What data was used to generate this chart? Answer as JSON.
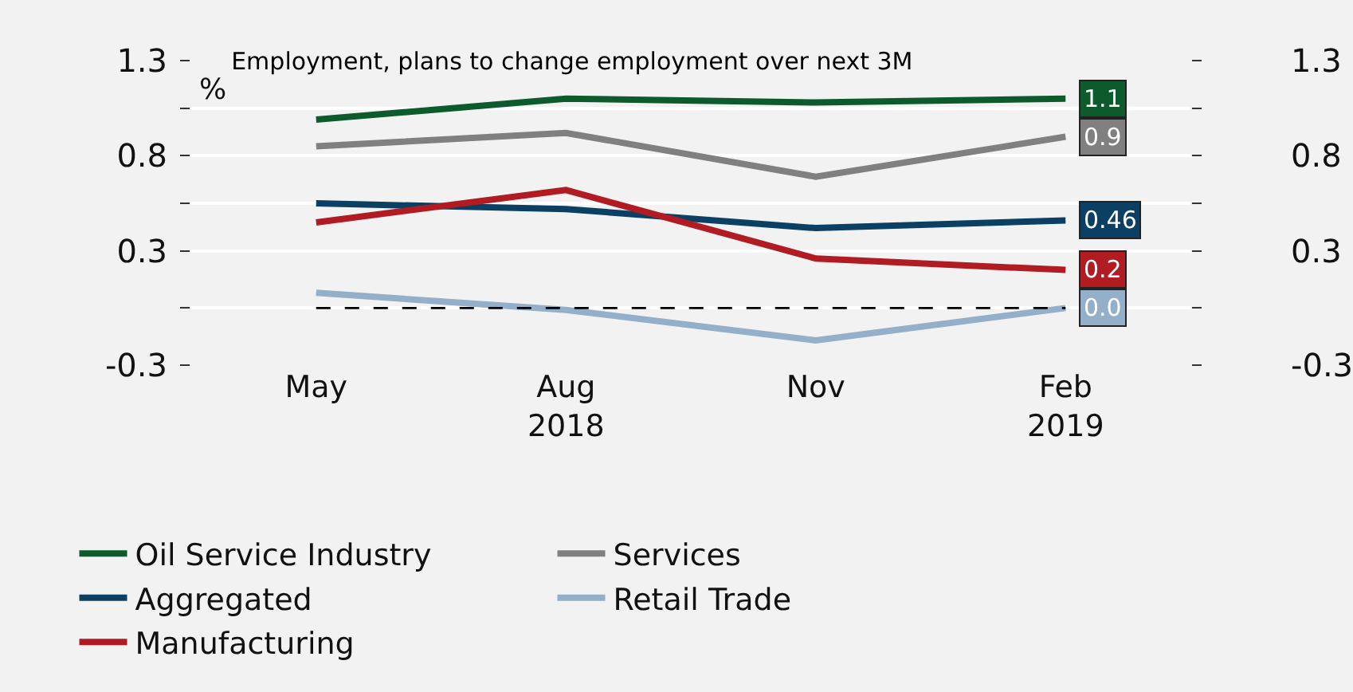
{
  "chart_data": {
    "type": "line",
    "title": "Employment, plans to change employment over next 3M",
    "ylabel": "%",
    "categories": [
      "May",
      "Aug\n2018",
      "Nov",
      "Feb\n2019"
    ],
    "series": [
      {
        "name": "Oil Service Industry",
        "color": "#0d5a2c",
        "values": [
          0.99,
          1.1,
          1.08,
          1.1
        ],
        "value_labels": [
          null,
          null,
          null,
          "1.1"
        ]
      },
      {
        "name": "Services",
        "color": "#808080",
        "values": [
          0.85,
          0.92,
          0.69,
          0.9
        ],
        "value_labels": [
          null,
          null,
          null,
          "0.9"
        ]
      },
      {
        "name": "Aggregated",
        "color": "#0b3f63",
        "values": [
          0.55,
          0.52,
          0.42,
          0.46
        ],
        "value_labels": [
          null,
          null,
          null,
          "0.46"
        ]
      },
      {
        "name": "Retail Trade",
        "color": "#93afca",
        "values": [
          0.08,
          -0.01,
          -0.17,
          0.0
        ],
        "value_labels": [
          null,
          null,
          null,
          "0.0"
        ]
      },
      {
        "name": "Manufacturing",
        "color": "#b01c22",
        "values": [
          0.45,
          0.62,
          0.26,
          0.2
        ],
        "value_labels": [
          null,
          null,
          null,
          "0.2"
        ]
      }
    ],
    "ylim": [
      -0.3,
      1.3
    ],
    "yticks": [
      1.3,
      {
        "value": 1.05,
        "label": null
      },
      0.8,
      {
        "value": 0.55,
        "label": null
      },
      0.3,
      {
        "value": 0,
        "label": null
      },
      -0.3
    ],
    "y2lim": [
      -0.3,
      1.3
    ],
    "y2ticks": [
      1.3,
      {
        "value": 1.05,
        "label": null
      },
      0.8,
      {
        "value": 0.55,
        "label": null
      },
      0.3,
      {
        "value": 0,
        "label": null
      },
      -0.3
    ],
    "ref_lines": [
      {
        "axis": "y",
        "value": 0,
        "color": "#000000",
        "line_style": "dashed"
      }
    ],
    "grid": "y",
    "legend": "bottom",
    "marker": "none",
    "line_style": "solid"
  }
}
